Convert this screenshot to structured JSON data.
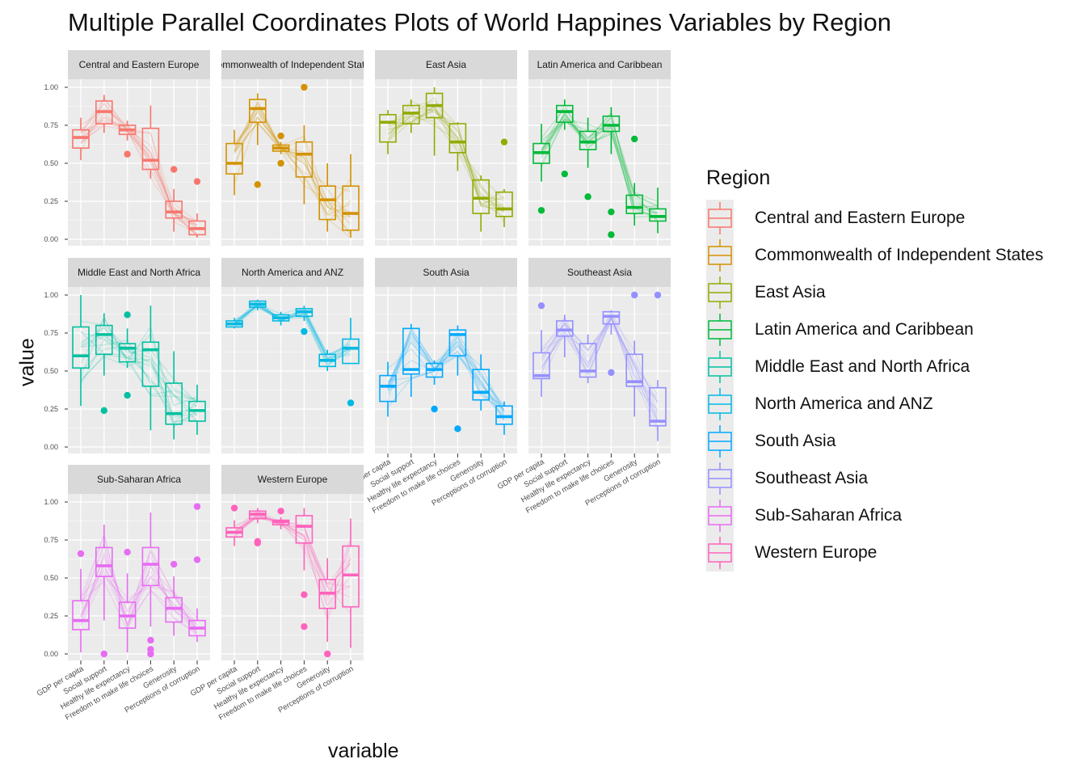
{
  "title": "Multiple Parallel Coordinates Plots of World Happines Variables by Region",
  "legend": {
    "title": "Region"
  },
  "chart_data": {
    "type": "boxplot-parallel-coordinates",
    "title": "Multiple Parallel Coordinates Plots of World Happines Variables by Region",
    "xlabel": "variable",
    "ylabel": "value",
    "ylim": [
      0,
      1
    ],
    "y_ticks": [
      "0.00",
      "0.25",
      "0.50",
      "0.75",
      "1.00"
    ],
    "variables": [
      "GDP per capita",
      "Social support",
      "Healthy life expectancy",
      "Freedom to make life choices",
      "Generosity",
      "Perceptions of corruption"
    ],
    "legend_position": "right",
    "panels": [
      {
        "region": "Central and Eastern Europe",
        "color": "#F8766D",
        "boxes": [
          {
            "low": 0.52,
            "q1": 0.6,
            "med": 0.67,
            "q3": 0.72,
            "high": 0.8,
            "out": []
          },
          {
            "low": 0.7,
            "q1": 0.76,
            "med": 0.84,
            "q3": 0.91,
            "high": 0.95,
            "out": []
          },
          {
            "low": 0.65,
            "q1": 0.69,
            "med": 0.72,
            "q3": 0.75,
            "high": 0.78,
            "out": [
              0.56
            ]
          },
          {
            "low": 0.4,
            "q1": 0.46,
            "med": 0.52,
            "q3": 0.73,
            "high": 0.88,
            "out": []
          },
          {
            "low": 0.05,
            "q1": 0.14,
            "med": 0.18,
            "q3": 0.25,
            "high": 0.33,
            "out": [
              0.46
            ]
          },
          {
            "low": 0.01,
            "q1": 0.03,
            "med": 0.07,
            "q3": 0.12,
            "high": 0.17,
            "out": [
              0.38
            ]
          }
        ]
      },
      {
        "region": "Commonwealth of Independent States",
        "color": "#D39200",
        "boxes": [
          {
            "low": 0.29,
            "q1": 0.43,
            "med": 0.5,
            "q3": 0.63,
            "high": 0.72,
            "out": []
          },
          {
            "low": 0.62,
            "q1": 0.77,
            "med": 0.86,
            "q3": 0.92,
            "high": 0.96,
            "out": [
              0.36
            ]
          },
          {
            "low": 0.56,
            "q1": 0.58,
            "med": 0.6,
            "q3": 0.62,
            "high": 0.64,
            "out": [
              0.5,
              0.68
            ]
          },
          {
            "low": 0.23,
            "q1": 0.41,
            "med": 0.56,
            "q3": 0.64,
            "high": 0.75,
            "out": [
              1.0
            ]
          },
          {
            "low": 0.05,
            "q1": 0.13,
            "med": 0.26,
            "q3": 0.35,
            "high": 0.5,
            "out": []
          },
          {
            "low": 0.01,
            "q1": 0.06,
            "med": 0.17,
            "q3": 0.35,
            "high": 0.56,
            "out": []
          }
        ]
      },
      {
        "region": "East Asia",
        "color": "#93AA00",
        "boxes": [
          {
            "low": 0.56,
            "q1": 0.64,
            "med": 0.77,
            "q3": 0.82,
            "high": 0.85,
            "out": []
          },
          {
            "low": 0.7,
            "q1": 0.76,
            "med": 0.83,
            "q3": 0.88,
            "high": 0.92,
            "out": []
          },
          {
            "low": 0.55,
            "q1": 0.8,
            "med": 0.88,
            "q3": 0.96,
            "high": 1.0,
            "out": []
          },
          {
            "low": 0.45,
            "q1": 0.57,
            "med": 0.64,
            "q3": 0.76,
            "high": 0.77,
            "out": []
          },
          {
            "low": 0.05,
            "q1": 0.17,
            "med": 0.27,
            "q3": 0.39,
            "high": 0.42,
            "out": []
          },
          {
            "low": 0.08,
            "q1": 0.15,
            "med": 0.2,
            "q3": 0.31,
            "high": 0.33,
            "out": [
              0.64
            ]
          }
        ]
      },
      {
        "region": "Latin America and Caribbean",
        "color": "#00BA38",
        "boxes": [
          {
            "low": 0.38,
            "q1": 0.5,
            "med": 0.57,
            "q3": 0.63,
            "high": 0.76,
            "out": [
              0.19
            ]
          },
          {
            "low": 0.72,
            "q1": 0.77,
            "med": 0.84,
            "q3": 0.88,
            "high": 0.92,
            "out": [
              0.43
            ]
          },
          {
            "low": 0.47,
            "q1": 0.59,
            "med": 0.64,
            "q3": 0.71,
            "high": 0.8,
            "out": [
              0.28
            ]
          },
          {
            "low": 0.56,
            "q1": 0.71,
            "med": 0.75,
            "q3": 0.81,
            "high": 0.87,
            "out": [
              0.03,
              0.18
            ]
          },
          {
            "low": 0.09,
            "q1": 0.17,
            "med": 0.21,
            "q3": 0.29,
            "high": 0.37,
            "out": [
              0.66
            ]
          },
          {
            "low": 0.04,
            "q1": 0.12,
            "med": 0.15,
            "q3": 0.2,
            "high": 0.34,
            "out": []
          }
        ]
      },
      {
        "region": "Middle East and North Africa",
        "color": "#00C19F",
        "boxes": [
          {
            "low": 0.27,
            "q1": 0.52,
            "med": 0.6,
            "q3": 0.79,
            "high": 1.0,
            "out": []
          },
          {
            "low": 0.47,
            "q1": 0.61,
            "med": 0.74,
            "q3": 0.8,
            "high": 0.88,
            "out": [
              0.24
            ]
          },
          {
            "low": 0.52,
            "q1": 0.56,
            "med": 0.65,
            "q3": 0.68,
            "high": 0.78,
            "out": [
              0.34,
              0.87
            ]
          },
          {
            "low": 0.11,
            "q1": 0.4,
            "med": 0.64,
            "q3": 0.69,
            "high": 0.93,
            "out": []
          },
          {
            "low": 0.05,
            "q1": 0.15,
            "med": 0.22,
            "q3": 0.42,
            "high": 0.63,
            "out": []
          },
          {
            "low": 0.08,
            "q1": 0.17,
            "med": 0.24,
            "q3": 0.3,
            "high": 0.41,
            "out": []
          }
        ]
      },
      {
        "region": "North America and ANZ",
        "color": "#00B9E3",
        "boxes": [
          {
            "low": 0.78,
            "q1": 0.79,
            "med": 0.81,
            "q3": 0.83,
            "high": 0.85,
            "out": []
          },
          {
            "low": 0.9,
            "q1": 0.92,
            "med": 0.94,
            "q3": 0.96,
            "high": 0.97,
            "out": []
          },
          {
            "low": 0.8,
            "q1": 0.83,
            "med": 0.85,
            "q3": 0.87,
            "high": 0.89,
            "out": []
          },
          {
            "low": 0.83,
            "q1": 0.86,
            "med": 0.89,
            "q3": 0.91,
            "high": 0.93,
            "out": [
              0.76
            ]
          },
          {
            "low": 0.5,
            "q1": 0.53,
            "med": 0.57,
            "q3": 0.61,
            "high": 0.64,
            "out": []
          },
          {
            "low": 0.55,
            "q1": 0.55,
            "med": 0.65,
            "q3": 0.71,
            "high": 0.85,
            "out": [
              0.29
            ]
          }
        ]
      },
      {
        "region": "South Asia",
        "color": "#00A9FF",
        "boxes": [
          {
            "low": 0.2,
            "q1": 0.3,
            "med": 0.4,
            "q3": 0.47,
            "high": 0.56,
            "out": []
          },
          {
            "low": 0.33,
            "q1": 0.48,
            "med": 0.51,
            "q3": 0.78,
            "high": 0.81,
            "out": []
          },
          {
            "low": 0.41,
            "q1": 0.46,
            "med": 0.51,
            "q3": 0.55,
            "high": 0.57,
            "out": [
              0.25
            ]
          },
          {
            "low": 0.47,
            "q1": 0.6,
            "med": 0.74,
            "q3": 0.77,
            "high": 0.8,
            "out": [
              0.12
            ]
          },
          {
            "low": 0.24,
            "q1": 0.31,
            "med": 0.36,
            "q3": 0.51,
            "high": 0.61,
            "out": []
          },
          {
            "low": 0.08,
            "q1": 0.15,
            "med": 0.2,
            "q3": 0.27,
            "high": 0.3,
            "out": []
          }
        ]
      },
      {
        "region": "Southeast Asia",
        "color": "#9590FF",
        "boxes": [
          {
            "low": 0.33,
            "q1": 0.45,
            "med": 0.47,
            "q3": 0.62,
            "high": 0.77,
            "out": [
              0.93
            ]
          },
          {
            "low": 0.59,
            "q1": 0.73,
            "med": 0.77,
            "q3": 0.83,
            "high": 0.87,
            "out": []
          },
          {
            "low": 0.42,
            "q1": 0.46,
            "med": 0.5,
            "q3": 0.68,
            "high": 0.74,
            "out": []
          },
          {
            "low": 0.74,
            "q1": 0.81,
            "med": 0.86,
            "q3": 0.89,
            "high": 0.9,
            "out": [
              0.49
            ]
          },
          {
            "low": 0.2,
            "q1": 0.4,
            "med": 0.43,
            "q3": 0.61,
            "high": 0.7,
            "out": [
              1.0
            ]
          },
          {
            "low": 0.04,
            "q1": 0.14,
            "med": 0.17,
            "q3": 0.39,
            "high": 0.44,
            "out": [
              1.0
            ]
          }
        ]
      },
      {
        "region": "Sub-Saharan Africa",
        "color": "#E76BF3",
        "boxes": [
          {
            "low": 0.01,
            "q1": 0.16,
            "med": 0.22,
            "q3": 0.35,
            "high": 0.56,
            "out": [
              0.66
            ]
          },
          {
            "low": 0.22,
            "q1": 0.51,
            "med": 0.58,
            "q3": 0.7,
            "high": 0.85,
            "out": [
              0.0
            ]
          },
          {
            "low": 0.01,
            "q1": 0.17,
            "med": 0.25,
            "q3": 0.34,
            "high": 0.53,
            "out": [
              0.67
            ]
          },
          {
            "low": 0.18,
            "q1": 0.45,
            "med": 0.59,
            "q3": 0.7,
            "high": 0.93,
            "out": [
              0.0,
              0.03,
              0.09
            ]
          },
          {
            "low": 0.12,
            "q1": 0.21,
            "med": 0.3,
            "q3": 0.37,
            "high": 0.51,
            "out": [
              0.59
            ]
          },
          {
            "low": 0.08,
            "q1": 0.12,
            "med": 0.17,
            "q3": 0.22,
            "high": 0.3,
            "out": [
              0.62,
              0.97
            ]
          }
        ]
      },
      {
        "region": "Western Europe",
        "color": "#FF62BC",
        "boxes": [
          {
            "low": 0.71,
            "q1": 0.77,
            "med": 0.8,
            "q3": 0.83,
            "high": 0.88,
            "out": [
              0.96
            ]
          },
          {
            "low": 0.86,
            "q1": 0.89,
            "med": 0.92,
            "q3": 0.94,
            "high": 0.96,
            "out": [
              0.73,
              0.74
            ]
          },
          {
            "low": 0.82,
            "q1": 0.85,
            "med": 0.87,
            "q3": 0.88,
            "high": 0.9,
            "out": [
              0.94
            ]
          },
          {
            "low": 0.55,
            "q1": 0.73,
            "med": 0.84,
            "q3": 0.91,
            "high": 0.96,
            "out": [
              0.18,
              0.39
            ]
          },
          {
            "low": 0.08,
            "q1": 0.3,
            "med": 0.4,
            "q3": 0.49,
            "high": 0.63,
            "out": [
              0.0
            ]
          },
          {
            "low": 0.04,
            "q1": 0.31,
            "med": 0.52,
            "q3": 0.71,
            "high": 0.89,
            "out": []
          }
        ]
      }
    ]
  }
}
